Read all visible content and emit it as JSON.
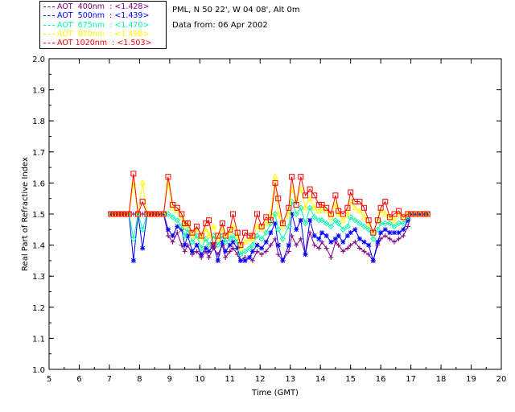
{
  "header": {
    "location": "PML, N 50 22', W 04 08', Alt 0m",
    "date_line": "Data from: 06 Apr 2002"
  },
  "legend": [
    {
      "label": "AOT  400nm  : <1.428>",
      "color": "#800080"
    },
    {
      "label": "AOT  500nm  : <1.439>",
      "color": "#0000ff"
    },
    {
      "label": "AOT  675nm  : <1.470>",
      "color": "#00ffaa"
    },
    {
      "label": "AOT  870nm  : <1.498>",
      "color": "#ffff00"
    },
    {
      "label": "AOT 1020nm  : <1.503>",
      "color": "#ff0000"
    }
  ],
  "chart_data": {
    "type": "line",
    "xlabel": "Time (GMT)",
    "ylabel": "Real Part of Refractive Index",
    "xlim": [
      5,
      20
    ],
    "ylim": [
      1.0,
      2.0
    ],
    "x_ticks": [
      "5",
      "6",
      "7",
      "8",
      "9",
      "10",
      "11",
      "12",
      "13",
      "14",
      "15",
      "16",
      "17",
      "18",
      "19",
      "20"
    ],
    "y_ticks": [
      "1.0",
      "1.1",
      "1.2",
      "1.3",
      "1.4",
      "1.5",
      "1.6",
      "1.7",
      "1.8",
      "1.9",
      "2.0"
    ],
    "x": [
      7.05,
      7.15,
      7.25,
      7.35,
      7.45,
      7.55,
      7.65,
      7.8,
      7.95,
      8.1,
      8.25,
      8.35,
      8.45,
      8.55,
      8.65,
      8.8,
      8.95,
      9.1,
      9.25,
      9.4,
      9.5,
      9.6,
      9.75,
      9.9,
      10.05,
      10.2,
      10.3,
      10.45,
      10.6,
      10.75,
      10.85,
      11.0,
      11.1,
      11.25,
      11.35,
      11.5,
      11.65,
      11.75,
      11.9,
      12.05,
      12.2,
      12.35,
      12.5,
      12.6,
      12.75,
      12.95,
      13.05,
      13.2,
      13.35,
      13.5,
      13.65,
      13.8,
      13.95,
      14.05,
      14.2,
      14.35,
      14.5,
      14.6,
      14.75,
      14.9,
      15.0,
      15.15,
      15.3,
      15.45,
      15.6,
      15.75,
      15.9,
      16.0,
      16.15,
      16.3,
      16.45,
      16.6,
      16.75,
      16.9,
      17.0,
      17.15,
      17.3,
      17.45,
      17.55
    ],
    "series": [
      {
        "name": "AOT  400nm  : <1.428>",
        "color": "#800080",
        "marker": "plus",
        "values": [
          1.5,
          1.5,
          1.5,
          1.5,
          1.5,
          1.5,
          1.5,
          1.5,
          1.5,
          1.5,
          1.5,
          1.5,
          1.5,
          1.5,
          1.5,
          1.5,
          1.43,
          1.41,
          1.44,
          1.4,
          1.38,
          1.4,
          1.37,
          1.38,
          1.36,
          1.38,
          1.36,
          1.39,
          1.37,
          1.4,
          1.36,
          1.38,
          1.39,
          1.37,
          1.35,
          1.36,
          1.36,
          1.35,
          1.38,
          1.37,
          1.38,
          1.4,
          1.42,
          1.37,
          1.35,
          1.38,
          1.43,
          1.4,
          1.42,
          1.37,
          1.44,
          1.4,
          1.39,
          1.41,
          1.39,
          1.36,
          1.41,
          1.4,
          1.38,
          1.39,
          1.4,
          1.41,
          1.39,
          1.38,
          1.37,
          1.35,
          1.4,
          1.42,
          1.43,
          1.42,
          1.41,
          1.42,
          1.43,
          1.46,
          1.5,
          1.5,
          1.5,
          1.5,
          1.5
        ]
      },
      {
        "name": "AOT  500nm  : <1.439>",
        "color": "#0000ff",
        "marker": "star",
        "values": [
          1.5,
          1.5,
          1.5,
          1.5,
          1.5,
          1.5,
          1.5,
          1.35,
          1.5,
          1.39,
          1.5,
          1.5,
          1.5,
          1.5,
          1.5,
          1.5,
          1.45,
          1.43,
          1.46,
          1.45,
          1.4,
          1.43,
          1.38,
          1.4,
          1.37,
          1.39,
          1.38,
          1.4,
          1.35,
          1.41,
          1.38,
          1.4,
          1.41,
          1.39,
          1.35,
          1.35,
          1.36,
          1.38,
          1.4,
          1.39,
          1.41,
          1.44,
          1.47,
          1.4,
          1.35,
          1.4,
          1.5,
          1.45,
          1.48,
          1.37,
          1.48,
          1.43,
          1.42,
          1.44,
          1.43,
          1.41,
          1.42,
          1.43,
          1.41,
          1.43,
          1.44,
          1.45,
          1.42,
          1.41,
          1.4,
          1.35,
          1.41,
          1.44,
          1.45,
          1.44,
          1.44,
          1.44,
          1.45,
          1.48,
          1.5,
          1.5,
          1.5,
          1.5,
          1.5
        ]
      },
      {
        "name": "AOT  675nm  : <1.470>",
        "color": "#00ffaa",
        "marker": "diamond",
        "values": [
          1.5,
          1.5,
          1.5,
          1.5,
          1.5,
          1.5,
          1.5,
          1.42,
          1.5,
          1.45,
          1.5,
          1.5,
          1.5,
          1.5,
          1.5,
          1.5,
          1.5,
          1.49,
          1.48,
          1.46,
          1.43,
          1.45,
          1.41,
          1.43,
          1.39,
          1.42,
          1.4,
          1.43,
          1.4,
          1.43,
          1.41,
          1.42,
          1.43,
          1.41,
          1.37,
          1.38,
          1.39,
          1.4,
          1.43,
          1.42,
          1.44,
          1.47,
          1.5,
          1.45,
          1.42,
          1.46,
          1.54,
          1.5,
          1.52,
          1.47,
          1.52,
          1.49,
          1.48,
          1.48,
          1.47,
          1.46,
          1.48,
          1.47,
          1.45,
          1.46,
          1.49,
          1.48,
          1.47,
          1.46,
          1.45,
          1.42,
          1.45,
          1.47,
          1.47,
          1.47,
          1.46,
          1.47,
          1.47,
          1.49,
          1.5,
          1.5,
          1.5,
          1.5,
          1.5
        ]
      },
      {
        "name": "AOT  870nm  : <1.498>",
        "color": "#ffff00",
        "marker": "triangle",
        "values": [
          1.5,
          1.5,
          1.5,
          1.5,
          1.5,
          1.5,
          1.5,
          1.6,
          1.5,
          1.6,
          1.5,
          1.5,
          1.5,
          1.5,
          1.5,
          1.5,
          1.6,
          1.52,
          1.51,
          1.49,
          1.46,
          1.47,
          1.43,
          1.45,
          1.42,
          1.45,
          1.43,
          1.46,
          1.42,
          1.45,
          1.43,
          1.44,
          1.46,
          1.43,
          1.39,
          1.41,
          1.42,
          1.42,
          1.46,
          1.45,
          1.47,
          1.5,
          1.62,
          1.5,
          1.46,
          1.5,
          1.58,
          1.55,
          1.58,
          1.52,
          1.55,
          1.52,
          1.51,
          1.52,
          1.51,
          1.49,
          1.53,
          1.5,
          1.48,
          1.5,
          1.54,
          1.52,
          1.51,
          1.49,
          1.47,
          1.44,
          1.48,
          1.51,
          1.5,
          1.49,
          1.48,
          1.5,
          1.49,
          1.5,
          1.5,
          1.5,
          1.5,
          1.5,
          1.5
        ]
      },
      {
        "name": "AOT 1020nm  : <1.503>",
        "color": "#ff0000",
        "marker": "square",
        "values": [
          1.5,
          1.5,
          1.5,
          1.5,
          1.5,
          1.5,
          1.5,
          1.63,
          1.5,
          1.54,
          1.5,
          1.5,
          1.5,
          1.5,
          1.5,
          1.5,
          1.62,
          1.53,
          1.52,
          1.5,
          1.47,
          1.47,
          1.44,
          1.46,
          1.43,
          1.47,
          1.48,
          1.4,
          1.43,
          1.47,
          1.43,
          1.45,
          1.5,
          1.44,
          1.4,
          1.44,
          1.43,
          1.43,
          1.5,
          1.46,
          1.49,
          1.48,
          1.6,
          1.55,
          1.47,
          1.52,
          1.62,
          1.53,
          1.62,
          1.56,
          1.58,
          1.56,
          1.53,
          1.53,
          1.52,
          1.5,
          1.56,
          1.51,
          1.5,
          1.52,
          1.57,
          1.54,
          1.54,
          1.52,
          1.48,
          1.44,
          1.48,
          1.52,
          1.54,
          1.49,
          1.5,
          1.51,
          1.49,
          1.5,
          1.5,
          1.5,
          1.5,
          1.5,
          1.5
        ]
      }
    ]
  }
}
